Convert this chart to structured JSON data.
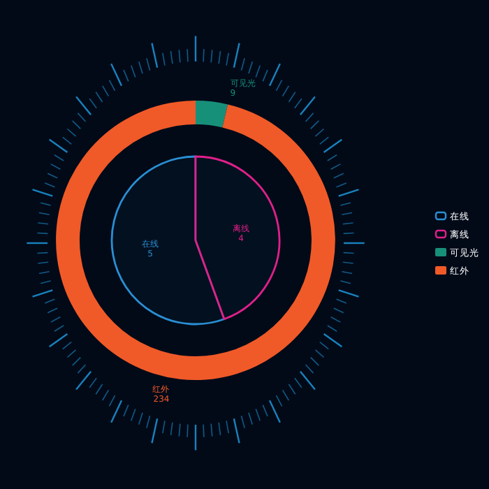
{
  "chart_data": [
    {
      "type": "pie",
      "categories": [
        "在线",
        "离线"
      ],
      "values": [
        5,
        4
      ],
      "colors": [
        "#2a8fd4",
        "#e0208a"
      ],
      "data_labels": true,
      "legend": "right"
    },
    {
      "type": "donut",
      "categories": [
        "可见光",
        "红外"
      ],
      "values": [
        9,
        234
      ],
      "colors": [
        "#17907a",
        "#f05a28"
      ],
      "data_labels": true,
      "legend": "right"
    }
  ]
}
